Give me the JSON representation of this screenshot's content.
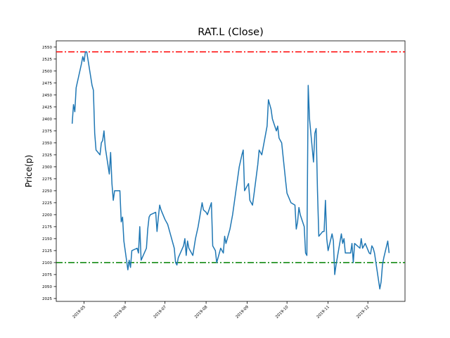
{
  "chart_data": {
    "type": "line",
    "title": "RAT.L (Close)",
    "y_label": "Price(p)",
    "x": [
      "2019-04-22",
      "2019-04-23",
      "2019-04-24",
      "2019-04-25",
      "2019-04-29",
      "2019-04-30",
      "2019-05-01",
      "2019-05-02",
      "2019-05-03",
      "2019-05-07",
      "2019-05-08",
      "2019-05-09",
      "2019-05-10",
      "2019-05-13",
      "2019-05-14",
      "2019-05-15",
      "2019-05-16",
      "2019-05-17",
      "2019-05-20",
      "2019-05-21",
      "2019-05-22",
      "2019-05-23",
      "2019-05-24",
      "2019-05-28",
      "2019-05-29",
      "2019-05-30",
      "2019-05-31",
      "2019-06-03",
      "2019-06-04",
      "2019-06-05",
      "2019-06-06",
      "2019-06-10",
      "2019-06-11",
      "2019-06-12",
      "2019-06-13",
      "2019-06-17",
      "2019-06-18",
      "2019-06-19",
      "2019-06-20",
      "2019-06-24",
      "2019-06-25",
      "2019-06-26",
      "2019-06-27",
      "2019-06-28",
      "2019-07-01",
      "2019-07-03",
      "2019-07-05",
      "2019-07-08",
      "2019-07-09",
      "2019-07-10",
      "2019-07-11",
      "2019-07-15",
      "2019-07-16",
      "2019-07-17",
      "2019-07-18",
      "2019-07-19",
      "2019-07-22",
      "2019-07-24",
      "2019-07-26",
      "2019-07-29",
      "2019-07-30",
      "2019-08-01",
      "2019-08-02",
      "2019-08-05",
      "2019-08-06",
      "2019-08-08",
      "2019-08-09",
      "2019-08-12",
      "2019-08-13",
      "2019-08-14",
      "2019-08-15",
      "2019-08-16",
      "2019-08-19",
      "2019-08-21",
      "2019-08-23",
      "2019-08-26",
      "2019-08-28",
      "2019-08-29",
      "2019-08-30",
      "2019-09-02",
      "2019-09-03",
      "2019-09-05",
      "2019-09-06",
      "2019-09-09",
      "2019-09-10",
      "2019-09-11",
      "2019-09-12",
      "2019-09-16",
      "2019-09-17",
      "2019-09-19",
      "2019-09-20",
      "2019-09-23",
      "2019-09-24",
      "2019-09-25",
      "2019-09-26",
      "2019-09-27",
      "2019-09-30",
      "2019-10-01",
      "2019-10-04",
      "2019-10-07",
      "2019-10-08",
      "2019-10-09",
      "2019-10-10",
      "2019-10-11",
      "2019-10-14",
      "2019-10-15",
      "2019-10-16",
      "2019-10-17",
      "2019-10-18",
      "2019-10-21",
      "2019-10-22",
      "2019-10-23",
      "2019-10-24",
      "2019-10-25",
      "2019-10-28",
      "2019-10-29",
      "2019-10-30",
      "2019-10-31",
      "2019-11-01",
      "2019-11-04",
      "2019-11-05",
      "2019-11-06",
      "2019-11-07",
      "2019-11-11",
      "2019-11-12",
      "2019-11-13",
      "2019-11-14",
      "2019-11-18",
      "2019-11-19",
      "2019-11-20",
      "2019-11-21",
      "2019-11-25",
      "2019-11-26",
      "2019-11-27",
      "2019-11-28",
      "2019-11-29",
      "2019-12-02",
      "2019-12-03",
      "2019-12-04",
      "2019-12-05",
      "2019-12-06",
      "2019-12-10",
      "2019-12-11",
      "2019-12-12",
      "2019-12-13",
      "2019-12-16",
      "2019-12-17"
    ],
    "series": [
      {
        "name": "Close",
        "color": "#1f77b4",
        "values": [
          2390,
          2430,
          2415,
          2465,
          2515,
          2530,
          2520,
          2540,
          2540,
          2470,
          2460,
          2370,
          2335,
          2325,
          2350,
          2355,
          2375,
          2340,
          2285,
          2330,
          2265,
          2230,
          2250,
          2250,
          2185,
          2195,
          2145,
          2085,
          2105,
          2090,
          2125,
          2130,
          2120,
          2175,
          2105,
          2130,
          2170,
          2195,
          2200,
          2205,
          2165,
          2195,
          2220,
          2210,
          2190,
          2180,
          2160,
          2130,
          2100,
          2095,
          2110,
          2135,
          2150,
          2115,
          2145,
          2130,
          2115,
          2150,
          2175,
          2225,
          2210,
          2205,
          2200,
          2225,
          2135,
          2125,
          2100,
          2130,
          2125,
          2120,
          2155,
          2140,
          2170,
          2200,
          2240,
          2300,
          2325,
          2335,
          2250,
          2265,
          2230,
          2220,
          2240,
          2305,
          2335,
          2330,
          2325,
          2385,
          2440,
          2420,
          2400,
          2375,
          2385,
          2360,
          2355,
          2350,
          2270,
          2245,
          2225,
          2220,
          2170,
          2185,
          2215,
          2200,
          2175,
          2120,
          2115,
          2470,
          2400,
          2310,
          2370,
          2380,
          2250,
          2155,
          2165,
          2165,
          2230,
          2150,
          2125,
          2160,
          2145,
          2075,
          2095,
          2160,
          2140,
          2150,
          2120,
          2120,
          2140,
          2100,
          2140,
          2130,
          2150,
          2130,
          2135,
          2140,
          2120,
          2118,
          2135,
          2130,
          2120,
          2045,
          2060,
          2095,
          2110,
          2145,
          2120
        ]
      }
    ],
    "hlines": [
      {
        "value": 2540,
        "color": "#ff0000"
      },
      {
        "value": 2100,
        "color": "#008000"
      }
    ],
    "xlim": [
      "2019-04-10",
      "2019-12-29"
    ],
    "xticks": [
      {
        "value": "2019-05-01",
        "label": "2019-05"
      },
      {
        "value": "2019-06-01",
        "label": "2019-06"
      },
      {
        "value": "2019-07-01",
        "label": "2019-07"
      },
      {
        "value": "2019-08-01",
        "label": "2019-08"
      },
      {
        "value": "2019-09-01",
        "label": "2019-09"
      },
      {
        "value": "2019-10-01",
        "label": "2019-10"
      },
      {
        "value": "2019-11-01",
        "label": "2019-11"
      },
      {
        "value": "2019-12-01",
        "label": "2019-12"
      }
    ],
    "ylim": [
      2019,
      2563
    ],
    "yticks": [
      2025,
      2050,
      2075,
      2100,
      2125,
      2150,
      2175,
      2200,
      2225,
      2250,
      2275,
      2300,
      2325,
      2350,
      2375,
      2400,
      2425,
      2450,
      2475,
      2500,
      2525,
      2550
    ]
  }
}
